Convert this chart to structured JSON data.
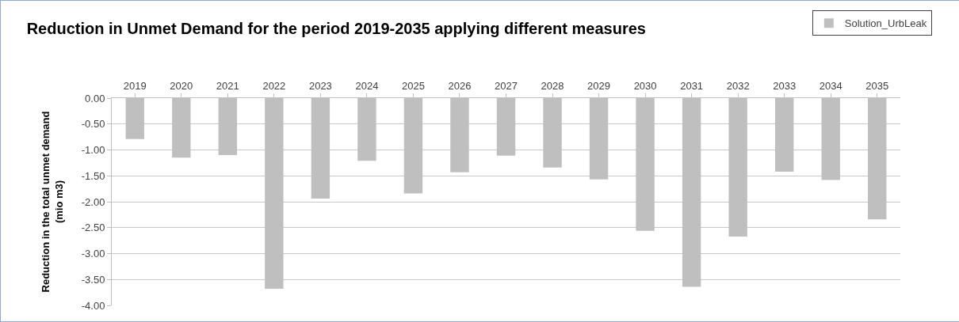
{
  "chart_data": {
    "type": "bar",
    "title": "Reduction in Unmet Demand for the period 2019-2035 applying different measures",
    "ylabel": "Reduction in the total unmet demand\n(mio m3)",
    "categories": [
      "2019",
      "2020",
      "2021",
      "2022",
      "2023",
      "2024",
      "2025",
      "2026",
      "2027",
      "2028",
      "2029",
      "2030",
      "2031",
      "2032",
      "2033",
      "2034",
      "2035"
    ],
    "series": [
      {
        "name": "Solution_UrbLeak",
        "color": "#bfbfbf",
        "values": [
          -0.79,
          -1.15,
          -1.1,
          -3.68,
          -1.94,
          -1.21,
          -1.84,
          -1.43,
          -1.11,
          -1.34,
          -1.57,
          -2.56,
          -3.64,
          -2.67,
          -1.42,
          -1.58,
          -2.34
        ]
      }
    ],
    "ylim": [
      -4,
      0
    ],
    "yticks": [
      {
        "value": 0,
        "label": "0.00"
      },
      {
        "value": -0.5,
        "label": "-0.50"
      },
      {
        "value": -1,
        "label": "-1.00"
      },
      {
        "value": -1.5,
        "label": "-1.50"
      },
      {
        "value": -2,
        "label": "-2.00"
      },
      {
        "value": -2.5,
        "label": "-2.50"
      },
      {
        "value": -3,
        "label": "-3.00"
      },
      {
        "value": -3.5,
        "label": "-3.50"
      },
      {
        "value": -4,
        "label": "-4.00"
      }
    ],
    "grid": "y",
    "legend": "top right"
  }
}
